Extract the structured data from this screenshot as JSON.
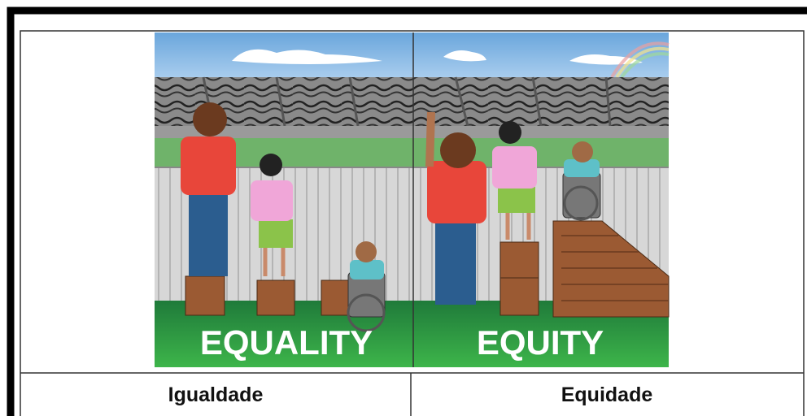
{
  "illustration": {
    "left_caption": "EQUALITY",
    "right_caption": "EQUITY"
  },
  "table": {
    "cells": [
      "Igualdade",
      "Equidade"
    ]
  }
}
